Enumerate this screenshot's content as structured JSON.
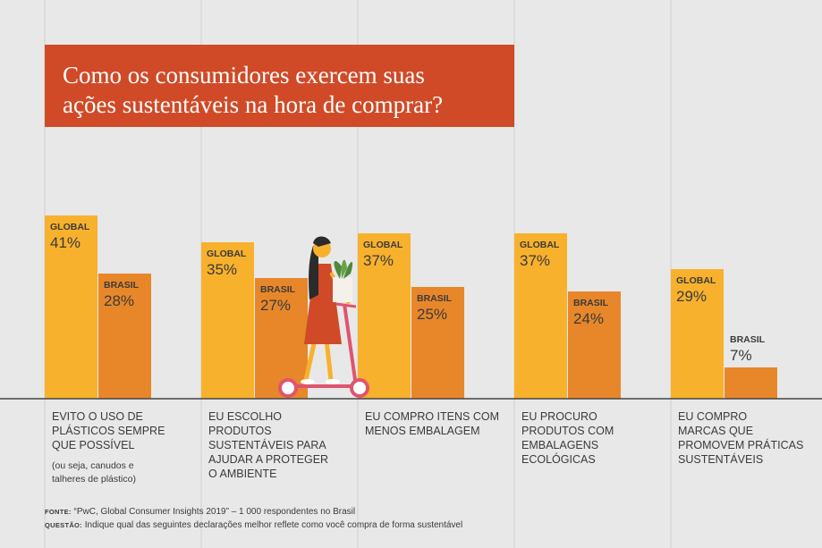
{
  "title": "Como os consumidores exercem suas ações sustentáveis na hora de comprar?",
  "title_lines": [
    "Como os consumidores exercem suas",
    "ações sustentáveis na hora de comprar?"
  ],
  "colors": {
    "background": "#e8e8e8",
    "title_box": "#d04a27",
    "global": "#f8b12d",
    "brasil": "#e8872a",
    "text": "#3a3a3a",
    "grid": "#cfcfcf",
    "axis": "#444444"
  },
  "chart_data": {
    "type": "bar",
    "categories": [
      "EVITO O USO DE PLÁSTICOS SEMPRE QUE POSSÍVEL",
      "EU ESCOLHO PRODUTOS SUSTENTÁVEIS PARA AJUDAR A PROTEGER O AMBIENTE",
      "EU COMPRO ITENS COM MENOS EMBALAGEM",
      "EU PROCURO PRODUTOS COM EMBALAGENS ECOLÓGICAS",
      "EU COMPRO MARCAS QUE PROMOVEM PRÁTICAS SUSTENTÁVEIS"
    ],
    "category_lines": [
      [
        "EVITO O USO DE",
        "PLÁSTICOS SEMPRE",
        "QUE POSSÍVEL"
      ],
      [
        "EU ESCOLHO",
        "PRODUTOS",
        "SUSTENTÁVEIS PARA",
        "AJUDAR A PROTEGER",
        "O AMBIENTE"
      ],
      [
        "EU COMPRO ITENS COM",
        "MENOS EMBALAGEM"
      ],
      [
        "EU PROCURO",
        "PRODUTOS COM",
        "EMBALAGENS",
        "ECOLÓGICAS"
      ],
      [
        "EU COMPRO",
        "MARCAS QUE",
        "PROMOVEM PRÁTICAS",
        "SUSTENTÁVEIS"
      ]
    ],
    "category_notes": [
      "(ou seja, canudos e talheres de plástico)",
      "",
      "",
      "",
      ""
    ],
    "category_note_lines": [
      [
        "(ou seja, canudos e",
        "talheres de plástico)"
      ],
      [],
      [],
      [],
      []
    ],
    "series": [
      {
        "name": "GLOBAL",
        "values": [
          41,
          35,
          37,
          37,
          29
        ]
      },
      {
        "name": "BRASIL",
        "values": [
          28,
          27,
          25,
          24,
          7
        ]
      }
    ],
    "value_labels": {
      "GLOBAL": [
        "41%",
        "35%",
        "37%",
        "37%",
        "29%"
      ],
      "BRASIL": [
        "28%",
        "27%",
        "25%",
        "24%",
        "7%"
      ]
    },
    "ylim": [
      0,
      50
    ],
    "xlabel": "",
    "ylabel": ""
  },
  "footer": {
    "source_label": "FONTE:",
    "source_text": " “PwC, Global Consumer Insights 2019” – 1 000 respondentes no Brasil",
    "question_label": "QUESTÃO:",
    "question_text": " Indique qual das seguintes declarações melhor reflete como você compra de forma sustentável"
  }
}
